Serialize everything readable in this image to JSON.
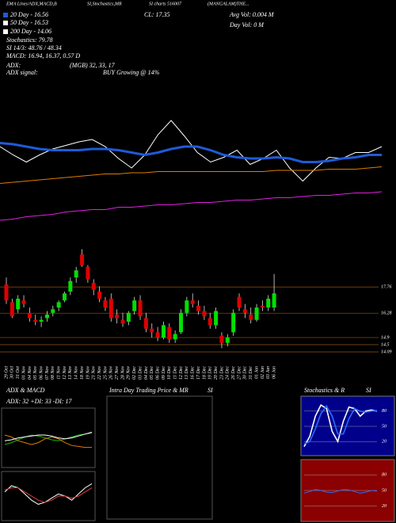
{
  "header": {
    "items": [
      "EMA Lines/ADX,MACD,B",
      "SI,Stochastics,MR",
      "SI charts 516007",
      "(MANGALAM)THE..."
    ],
    "ema20": "20 Day - 16.56",
    "ema50": "50 Day - 16.53",
    "ema200": "200 Day - 14.06",
    "stoch": "Stochastics: 79.78",
    "si": "SI 14/3: 48.76 / 48.34",
    "macd": "MACD: 16.94, 16.37, 0.57 D",
    "adx_label": "ADX:",
    "adx_value": "(MGB) 32, 33, 17",
    "adx_signal_label": "ADX  signal:",
    "adx_signal": "BUY Growing @ 14%",
    "close": "CL: 17.35",
    "avg_vol": "Avg Vol: 0.004  M",
    "day_vol": "Day Vol: 0   M"
  },
  "panels": {
    "intraday_title": "Intra  Day Trading Price  & MR",
    "intraday_si": "SI"
  },
  "chart_data": [
    {
      "type": "line",
      "ylim": [
        0,
        100
      ],
      "series": [
        {
          "color": "#ffffff",
          "values": [
            70,
            63,
            57,
            63,
            68,
            71,
            74,
            76,
            70,
            60,
            52,
            63,
            80,
            92,
            79,
            65,
            57,
            61,
            67,
            55,
            60,
            67,
            52,
            41,
            52,
            61,
            60,
            65,
            65,
            70
          ]
        },
        {
          "color": "#1e5bd8",
          "values": [
            73,
            72,
            70,
            68,
            67,
            67,
            67,
            68,
            68,
            67,
            65,
            63,
            65,
            68,
            70,
            70,
            67,
            63,
            61,
            60,
            60,
            61,
            60,
            57,
            57,
            58,
            60,
            61,
            63,
            63
          ]
        },
        {
          "color": "#e07b00",
          "values": [
            39,
            40,
            41,
            42,
            43,
            44,
            45,
            46,
            47,
            47,
            48,
            48,
            49,
            49,
            49,
            49,
            49,
            49,
            49,
            49,
            49,
            50,
            50,
            50,
            50,
            51,
            51,
            51,
            52,
            53
          ]
        },
        {
          "color": "#e020e0",
          "values": [
            8,
            9,
            11,
            12,
            13,
            15,
            16,
            17,
            17,
            19,
            19,
            20,
            21,
            21,
            22,
            23,
            23,
            24,
            25,
            25,
            26,
            27,
            27,
            28,
            29,
            29,
            30,
            31,
            31,
            32
          ]
        }
      ]
    },
    {
      "type": "candlestick",
      "up_color": "#00e000",
      "down_color": "#e00000",
      "ylim": [
        13.6,
        20.1
      ],
      "yticks": [
        17.76,
        16.28,
        14.9,
        14.5,
        14.09
      ],
      "categories": [
        "29 Oct",
        "30 Oct",
        "31 Oct",
        "01 Nov",
        "04 Nov",
        "05 Nov",
        "06 Nov",
        "07 Nov",
        "08 Nov",
        "11 Nov",
        "12 Nov",
        "13 Nov",
        "14 Nov",
        "18 Nov",
        "19 Nov",
        "21 Nov",
        "22 Nov",
        "25 Nov",
        "26 Nov",
        "27 Nov",
        "28 Nov",
        "29 Nov",
        "02 Dec",
        "03 Dec",
        "04 Dec",
        "05 Dec",
        "06 Dec",
        "09 Dec",
        "10 Dec",
        "11 Dec",
        "12 Dec",
        "13 Dec",
        "16 Dec",
        "17 Dec",
        "18 Dec",
        "19 Dec",
        "20 Dec",
        "23 Dec",
        "24 Dec",
        "26 Dec",
        "27 Dec",
        "30 Dec",
        "31 Dec",
        "01 Jan",
        "02 Jan",
        "03 Jan",
        "06 Jan"
      ],
      "ohlc": [
        [
          17.9,
          18.3,
          16.8,
          17.0
        ],
        [
          16.9,
          17.1,
          16.0,
          16.1
        ],
        [
          16.5,
          17.3,
          16.3,
          17.1
        ],
        [
          17.0,
          17.3,
          16.6,
          16.8
        ],
        [
          16.3,
          16.6,
          15.8,
          16.0
        ],
        [
          15.9,
          16.2,
          15.6,
          15.8
        ],
        [
          15.8,
          16.1,
          15.5,
          15.9
        ],
        [
          16.0,
          16.4,
          15.8,
          16.2
        ],
        [
          16.3,
          16.7,
          16.1,
          16.5
        ],
        [
          16.6,
          17.0,
          16.4,
          16.9
        ],
        [
          17.0,
          17.5,
          16.9,
          17.4
        ],
        [
          17.5,
          18.3,
          17.3,
          18.1
        ],
        [
          18.3,
          18.9,
          18.0,
          18.7
        ],
        [
          19.6,
          19.9,
          18.9,
          19.0
        ],
        [
          18.9,
          19.0,
          18.0,
          18.2
        ],
        [
          18.0,
          18.2,
          17.3,
          17.6
        ],
        [
          17.5,
          17.8,
          16.9,
          17.1
        ],
        [
          17.0,
          17.2,
          16.4,
          16.6
        ],
        [
          17.1,
          17.4,
          15.8,
          16.0
        ],
        [
          16.2,
          16.5,
          15.7,
          16.0
        ],
        [
          15.9,
          16.3,
          15.5,
          15.7
        ],
        [
          15.8,
          16.4,
          15.6,
          16.3
        ],
        [
          16.4,
          17.2,
          16.2,
          17.0
        ],
        [
          17.0,
          17.3,
          15.9,
          16.1
        ],
        [
          16.0,
          16.3,
          15.2,
          15.4
        ],
        [
          15.4,
          15.7,
          14.9,
          15.2
        ],
        [
          15.2,
          15.5,
          14.7,
          14.9
        ],
        [
          14.9,
          15.8,
          14.8,
          15.6
        ],
        [
          15.5,
          15.7,
          14.6,
          14.8
        ],
        [
          14.8,
          15.3,
          14.6,
          15.1
        ],
        [
          15.2,
          16.5,
          15.1,
          16.3
        ],
        [
          16.3,
          17.2,
          16.1,
          17.0
        ],
        [
          17.0,
          17.4,
          16.6,
          16.8
        ],
        [
          16.7,
          17.0,
          16.2,
          16.4
        ],
        [
          16.4,
          16.7,
          15.9,
          16.1
        ],
        [
          16.0,
          16.3,
          15.4,
          15.6
        ],
        [
          15.6,
          16.6,
          15.4,
          16.4
        ],
        [
          15.0,
          15.2,
          14.3,
          14.6
        ],
        [
          14.6,
          15.1,
          14.4,
          14.9
        ],
        [
          15.2,
          16.5,
          15.0,
          16.3
        ],
        [
          17.2,
          17.4,
          16.4,
          16.6
        ],
        [
          16.5,
          16.8,
          16.0,
          16.3
        ],
        [
          16.2,
          16.6,
          15.7,
          15.9
        ],
        [
          15.9,
          16.8,
          15.8,
          16.6
        ],
        [
          16.7,
          17.0,
          16.4,
          16.6
        ],
        [
          16.6,
          17.3,
          16.4,
          17.1
        ],
        [
          16.6,
          18.5,
          16.4,
          17.4
        ]
      ]
    },
    {
      "type": "line",
      "title": "ADX  & MACD",
      "subtitle": "ADX: 32  +DI: 33  -DI: 17",
      "ylim": [
        0,
        50
      ],
      "series": [
        {
          "color": "#00c000",
          "values": [
            20,
            22,
            25,
            28,
            30,
            29,
            27,
            25,
            24,
            26,
            28,
            30,
            31,
            32
          ]
        },
        {
          "color": "#e07b00",
          "values": [
            30,
            28,
            24,
            22,
            20,
            22,
            26,
            28,
            26,
            22,
            19,
            18,
            17,
            17
          ]
        },
        {
          "color": "#ffffff",
          "values": [
            24,
            25,
            27,
            28,
            29,
            30,
            30,
            29,
            27,
            26,
            27,
            29,
            31,
            33
          ]
        }
      ]
    },
    {
      "type": "line",
      "ylim": [
        -1,
        1
      ],
      "series": [
        {
          "color": "#ffffff",
          "values": [
            0.2,
            0.5,
            0.4,
            0.1,
            -0.2,
            -0.4,
            -0.3,
            -0.1,
            0.1,
            0.0,
            -0.2,
            0.1,
            0.4,
            0.6
          ]
        },
        {
          "color": "#e04040",
          "values": [
            0.3,
            0.4,
            0.4,
            0.2,
            0.0,
            -0.2,
            -0.3,
            -0.2,
            0.0,
            0.0,
            -0.1,
            0.0,
            0.2,
            0.4
          ]
        }
      ]
    },
    {
      "type": "line",
      "title": "Stochastics & R",
      "subtitle": "SI",
      "ylim": [
        0,
        100
      ],
      "yticks": [
        80,
        50,
        20
      ],
      "series": [
        {
          "color": "#ffffff",
          "values": [
            10,
            30,
            70,
            92,
            85,
            40,
            20,
            60,
            88,
            85,
            70,
            80,
            82,
            80
          ]
        },
        {
          "color": "#2a6cff",
          "values": [
            15,
            20,
            45,
            75,
            90,
            70,
            35,
            35,
            65,
            85,
            80,
            78,
            80,
            81
          ]
        }
      ]
    },
    {
      "type": "line",
      "ylim": [
        0,
        100
      ],
      "yticks": [
        80,
        50,
        20
      ],
      "series": [
        {
          "color": "#2a6cff",
          "values": [
            45,
            48,
            52,
            50,
            47,
            46,
            49,
            52,
            51,
            48,
            45,
            47,
            50,
            49
          ]
        }
      ]
    }
  ]
}
